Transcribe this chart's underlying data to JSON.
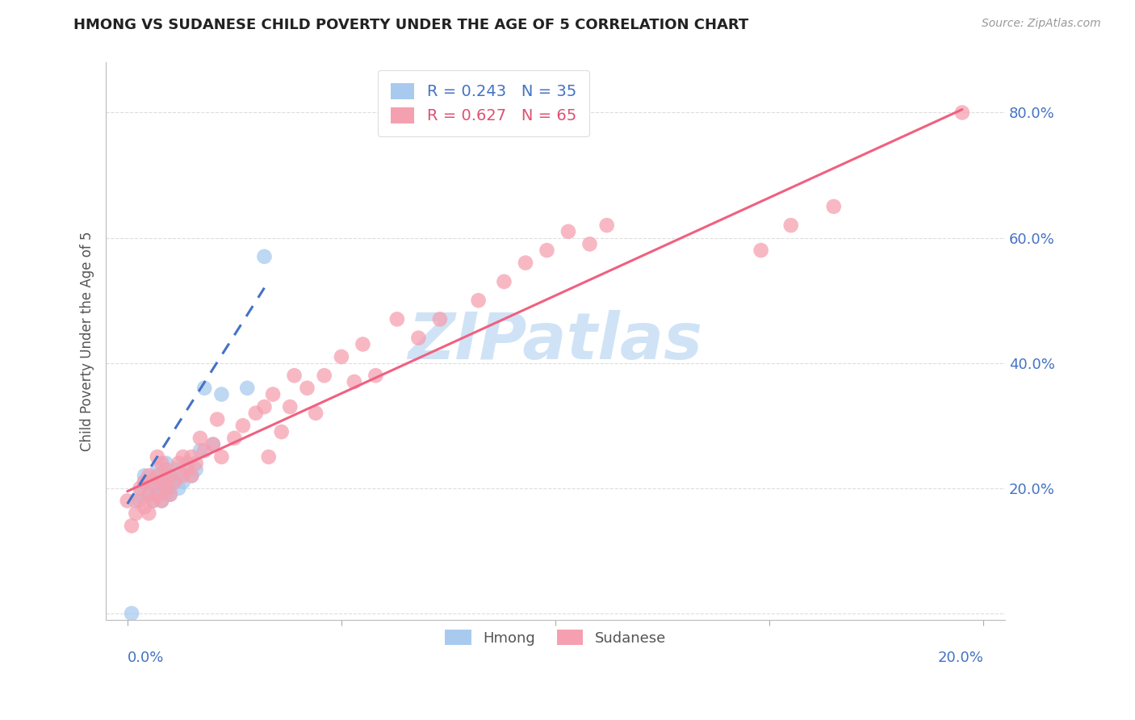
{
  "title": "HMONG VS SUDANESE CHILD POVERTY UNDER THE AGE OF 5 CORRELATION CHART",
  "source": "Source: ZipAtlas.com",
  "ylabel": "Child Poverty Under the Age of 5",
  "xlim": [
    -0.005,
    0.205
  ],
  "ylim": [
    -0.01,
    0.88
  ],
  "hmong_R": 0.243,
  "hmong_N": 35,
  "sudanese_R": 0.627,
  "sudanese_N": 65,
  "hmong_color": "#a8caee",
  "sudanese_color": "#f5a0b0",
  "hmong_line_color": "#4472c4",
  "sudanese_line_color": "#f06080",
  "background_color": "#ffffff",
  "grid_color": "#dddddd",
  "watermark_color": "#c8dff5",
  "hmong_x": [
    0.001,
    0.002,
    0.003,
    0.004,
    0.004,
    0.005,
    0.005,
    0.006,
    0.006,
    0.007,
    0.007,
    0.007,
    0.008,
    0.008,
    0.008,
    0.009,
    0.009,
    0.009,
    0.01,
    0.01,
    0.01,
    0.011,
    0.011,
    0.012,
    0.012,
    0.013,
    0.014,
    0.015,
    0.016,
    0.017,
    0.018,
    0.02,
    0.022,
    0.028,
    0.032
  ],
  "hmong_y": [
    0.0,
    0.18,
    0.19,
    0.21,
    0.22,
    0.19,
    0.21,
    0.18,
    0.2,
    0.19,
    0.21,
    0.23,
    0.18,
    0.2,
    0.22,
    0.19,
    0.21,
    0.24,
    0.19,
    0.2,
    0.22,
    0.21,
    0.23,
    0.2,
    0.22,
    0.21,
    0.24,
    0.22,
    0.23,
    0.26,
    0.36,
    0.27,
    0.35,
    0.36,
    0.57
  ],
  "sudanese_x": [
    0.0,
    0.001,
    0.002,
    0.003,
    0.003,
    0.004,
    0.004,
    0.005,
    0.005,
    0.005,
    0.006,
    0.006,
    0.007,
    0.007,
    0.007,
    0.008,
    0.008,
    0.008,
    0.009,
    0.009,
    0.01,
    0.01,
    0.011,
    0.012,
    0.013,
    0.013,
    0.014,
    0.015,
    0.015,
    0.016,
    0.017,
    0.018,
    0.02,
    0.021,
    0.022,
    0.025,
    0.027,
    0.03,
    0.032,
    0.033,
    0.034,
    0.036,
    0.038,
    0.039,
    0.042,
    0.044,
    0.046,
    0.05,
    0.053,
    0.055,
    0.058,
    0.063,
    0.068,
    0.073,
    0.082,
    0.088,
    0.093,
    0.098,
    0.103,
    0.108,
    0.112,
    0.148,
    0.155,
    0.165,
    0.195
  ],
  "sudanese_y": [
    0.18,
    0.14,
    0.16,
    0.18,
    0.2,
    0.17,
    0.21,
    0.16,
    0.19,
    0.22,
    0.18,
    0.21,
    0.19,
    0.22,
    0.25,
    0.18,
    0.21,
    0.24,
    0.2,
    0.23,
    0.19,
    0.22,
    0.21,
    0.24,
    0.22,
    0.25,
    0.23,
    0.22,
    0.25,
    0.24,
    0.28,
    0.26,
    0.27,
    0.31,
    0.25,
    0.28,
    0.3,
    0.32,
    0.33,
    0.25,
    0.35,
    0.29,
    0.33,
    0.38,
    0.36,
    0.32,
    0.38,
    0.41,
    0.37,
    0.43,
    0.38,
    0.47,
    0.44,
    0.47,
    0.5,
    0.53,
    0.56,
    0.58,
    0.61,
    0.59,
    0.62,
    0.58,
    0.62,
    0.65,
    0.8
  ],
  "hmong_line_x": [
    0.0,
    0.032
  ],
  "hmong_line_y": [
    0.175,
    0.52
  ],
  "sudanese_line_x": [
    0.0,
    0.195
  ],
  "sudanese_line_y": [
    0.195,
    0.805
  ]
}
